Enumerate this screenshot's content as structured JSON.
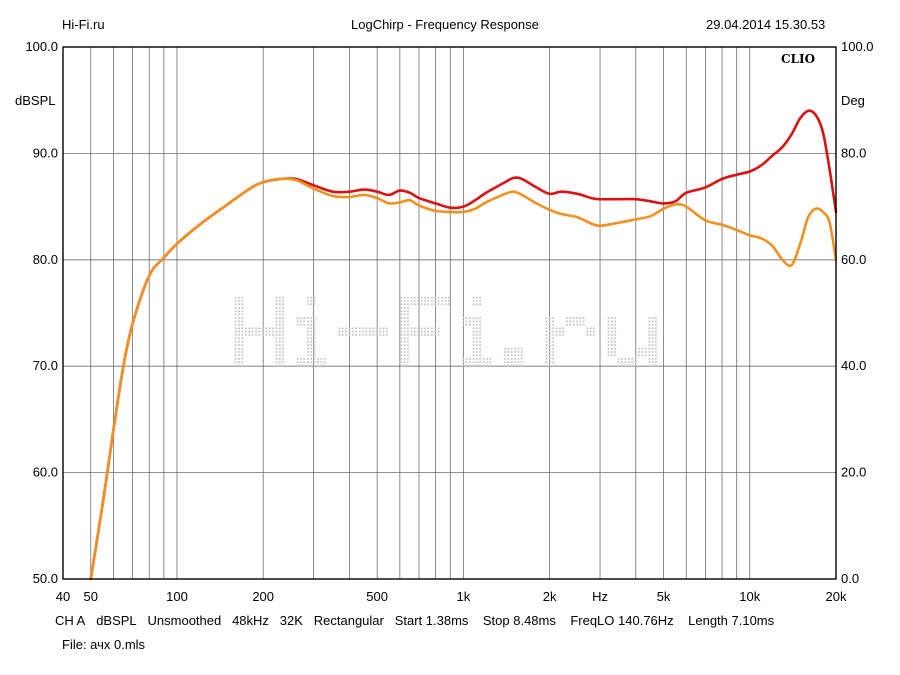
{
  "header": {
    "site": "Hi-Fi.ru",
    "title": "LogChirp - Frequency Response",
    "timestamp": "29.04.2014 15.30.53"
  },
  "brand_label": "CLIO",
  "watermark": "Hi-Fi.ru",
  "footer": {
    "settings": [
      "CH A",
      "dBSPL",
      "Unsmoothed",
      "48kHz",
      "32K",
      "Rectangular",
      "Start 1.38ms",
      "Stop 8.48ms",
      "FreqLO 140.76Hz",
      "Length 7.10ms"
    ],
    "file": "File: ачх 0.mls"
  },
  "colors": {
    "series_red": "#dd1111",
    "series_orange": "#f29020",
    "grid": "#6f6f6f",
    "frame": "#000000",
    "watermark": "#c8c8c8"
  },
  "chart_data": {
    "type": "line",
    "title": "LogChirp - Frequency Response",
    "xlabel": "Hz",
    "ylabel": "dBSPL",
    "y2label": "Deg",
    "xscale": "log",
    "xlim": [
      40,
      20000
    ],
    "ylim": [
      50,
      100
    ],
    "y2lim": [
      0,
      100
    ],
    "grid": true,
    "x_ticks": [
      {
        "value": 40,
        "label": "40"
      },
      {
        "value": 50,
        "label": "50"
      },
      {
        "value": 100,
        "label": "100"
      },
      {
        "value": 200,
        "label": "200"
      },
      {
        "value": 500,
        "label": "500"
      },
      {
        "value": 1000,
        "label": "1k"
      },
      {
        "value": 2000,
        "label": "2k"
      },
      {
        "value": 5000,
        "label": "5k"
      },
      {
        "value": 10000,
        "label": "10k"
      },
      {
        "value": 20000,
        "label": "20k"
      }
    ],
    "x_unit_label": {
      "value": 3000,
      "label": "Hz"
    },
    "y_ticks": [
      {
        "value": 100,
        "label": "100.0"
      },
      {
        "value": 90,
        "label": "90.0"
      },
      {
        "value": 80,
        "label": "80.0"
      },
      {
        "value": 70,
        "label": "70.0"
      },
      {
        "value": 60,
        "label": "60.0"
      },
      {
        "value": 50,
        "label": "50.0"
      }
    ],
    "y2_ticks": [
      {
        "value": 100,
        "label": "100.0"
      },
      {
        "value": 80,
        "label": "80.0"
      },
      {
        "value": 60,
        "label": "60.0"
      },
      {
        "value": 40,
        "label": "40.0"
      },
      {
        "value": 20,
        "label": "20.0"
      },
      {
        "value": 0,
        "label": "0.0"
      }
    ],
    "series": [
      {
        "color": "#dd1111",
        "points": [
          [
            50,
            50
          ],
          [
            55,
            57
          ],
          [
            60,
            64
          ],
          [
            65,
            70
          ],
          [
            70,
            74
          ],
          [
            80,
            78.5
          ],
          [
            90,
            80.2
          ],
          [
            100,
            81.5
          ],
          [
            120,
            83.3
          ],
          [
            150,
            85.2
          ],
          [
            180,
            86.7
          ],
          [
            200,
            87.3
          ],
          [
            230,
            87.6
          ],
          [
            260,
            87.6
          ],
          [
            300,
            87.0
          ],
          [
            350,
            86.4
          ],
          [
            400,
            86.4
          ],
          [
            450,
            86.6
          ],
          [
            500,
            86.4
          ],
          [
            550,
            86.1
          ],
          [
            600,
            86.5
          ],
          [
            650,
            86.3
          ],
          [
            700,
            85.8
          ],
          [
            800,
            85.3
          ],
          [
            900,
            84.9
          ],
          [
            1000,
            85.0
          ],
          [
            1100,
            85.6
          ],
          [
            1200,
            86.3
          ],
          [
            1400,
            87.3
          ],
          [
            1500,
            87.7
          ],
          [
            1600,
            87.6
          ],
          [
            1800,
            86.8
          ],
          [
            2000,
            86.2
          ],
          [
            2200,
            86.4
          ],
          [
            2500,
            86.2
          ],
          [
            2800,
            85.8
          ],
          [
            3000,
            85.7
          ],
          [
            3500,
            85.7
          ],
          [
            4000,
            85.7
          ],
          [
            4500,
            85.5
          ],
          [
            5000,
            85.3
          ],
          [
            5500,
            85.5
          ],
          [
            6000,
            86.3
          ],
          [
            7000,
            86.8
          ],
          [
            8000,
            87.6
          ],
          [
            9000,
            88.0
          ],
          [
            10000,
            88.3
          ],
          [
            11000,
            88.9
          ],
          [
            12000,
            89.8
          ],
          [
            13000,
            90.6
          ],
          [
            14000,
            91.8
          ],
          [
            15000,
            93.3
          ],
          [
            16000,
            94.0
          ],
          [
            17000,
            93.6
          ],
          [
            18000,
            92.0
          ],
          [
            19000,
            88.5
          ],
          [
            20000,
            84.5
          ]
        ]
      },
      {
        "color": "#f29020",
        "points": [
          [
            50,
            50
          ],
          [
            55,
            57
          ],
          [
            60,
            64
          ],
          [
            65,
            70
          ],
          [
            70,
            74
          ],
          [
            80,
            78.5
          ],
          [
            90,
            80.2
          ],
          [
            100,
            81.5
          ],
          [
            120,
            83.3
          ],
          [
            150,
            85.2
          ],
          [
            180,
            86.7
          ],
          [
            200,
            87.3
          ],
          [
            230,
            87.6
          ],
          [
            260,
            87.5
          ],
          [
            300,
            86.7
          ],
          [
            350,
            86.0
          ],
          [
            400,
            85.9
          ],
          [
            450,
            86.1
          ],
          [
            500,
            85.8
          ],
          [
            550,
            85.3
          ],
          [
            600,
            85.4
          ],
          [
            650,
            85.6
          ],
          [
            700,
            85.1
          ],
          [
            800,
            84.6
          ],
          [
            900,
            84.5
          ],
          [
            1000,
            84.5
          ],
          [
            1100,
            84.8
          ],
          [
            1200,
            85.4
          ],
          [
            1400,
            86.2
          ],
          [
            1500,
            86.4
          ],
          [
            1600,
            86.1
          ],
          [
            1800,
            85.3
          ],
          [
            2000,
            84.7
          ],
          [
            2200,
            84.3
          ],
          [
            2500,
            84.0
          ],
          [
            2800,
            83.4
          ],
          [
            3000,
            83.2
          ],
          [
            3500,
            83.5
          ],
          [
            4000,
            83.8
          ],
          [
            4500,
            84.1
          ],
          [
            5000,
            84.8
          ],
          [
            5500,
            85.2
          ],
          [
            6000,
            85.0
          ],
          [
            7000,
            83.7
          ],
          [
            8000,
            83.3
          ],
          [
            9000,
            82.8
          ],
          [
            10000,
            82.3
          ],
          [
            11000,
            82.0
          ],
          [
            12000,
            81.3
          ],
          [
            13000,
            80.0
          ],
          [
            14000,
            79.5
          ],
          [
            15000,
            81.5
          ],
          [
            16000,
            84.0
          ],
          [
            17000,
            84.8
          ],
          [
            18000,
            84.5
          ],
          [
            19000,
            83.5
          ],
          [
            20000,
            80.0
          ]
        ]
      }
    ]
  }
}
